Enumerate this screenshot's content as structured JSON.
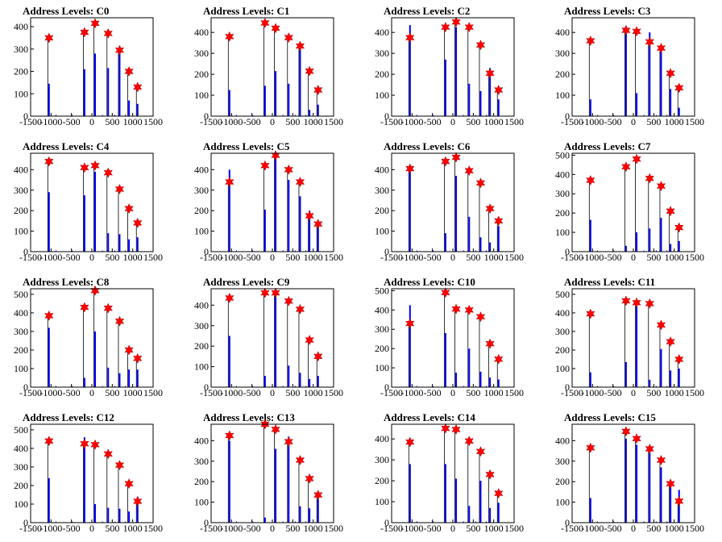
{
  "chart_data": [
    {
      "type": "bar",
      "title": "Address Levels: C0",
      "xlim": [
        -1500,
        1500
      ],
      "ylim": [
        0,
        440
      ],
      "x_ticks": [
        "-1500",
        "-1000",
        "-500",
        "0",
        "500",
        "1000",
        "1500"
      ],
      "y_ticks": [
        "0",
        "100",
        "200",
        "300",
        "400"
      ],
      "peaks": {
        "x": [
          -1050,
          -180,
          80,
          400,
          680,
          910,
          1120
        ],
        "y": [
          350,
          375,
          415,
          370,
          295,
          200,
          130
        ]
      },
      "bars": {
        "x": [
          -1050,
          -180,
          80,
          400,
          680,
          910,
          1120
        ],
        "values": [
          145,
          210,
          280,
          215,
          310,
          70,
          55
        ]
      }
    },
    {
      "type": "bar",
      "title": "Address Levels: C1",
      "xlim": [
        -1500,
        1500
      ],
      "ylim": [
        0,
        470
      ],
      "x_ticks": [
        "-1500",
        "-1000",
        "-500",
        "0",
        "500",
        "1000",
        "1500"
      ],
      "y_ticks": [
        "0",
        "100",
        "200",
        "300",
        "400"
      ],
      "peaks": {
        "x": [
          -1050,
          -180,
          80,
          400,
          680,
          910,
          1120
        ],
        "y": [
          380,
          445,
          420,
          375,
          335,
          215,
          125
        ]
      },
      "bars": {
        "x": [
          -1050,
          -180,
          80,
          400,
          680,
          910,
          1120
        ],
        "values": [
          125,
          145,
          215,
          155,
          345,
          30,
          55
        ]
      }
    },
    {
      "type": "bar",
      "title": "Address Levels: C2",
      "xlim": [
        -1500,
        1500
      ],
      "ylim": [
        0,
        470
      ],
      "x_ticks": [
        "-1500",
        "-1000",
        "-500",
        "0",
        "500",
        "1000",
        "1500"
      ],
      "y_ticks": [
        "0",
        "100",
        "200",
        "300",
        "400"
      ],
      "peaks": {
        "x": [
          -1050,
          -180,
          80,
          400,
          680,
          910,
          1120
        ],
        "y": [
          375,
          425,
          450,
          425,
          340,
          205,
          125
        ]
      },
      "bars": {
        "x": [
          -1050,
          -180,
          80,
          400,
          680,
          910,
          1120
        ],
        "values": [
          435,
          270,
          425,
          155,
          120,
          230,
          80
        ]
      }
    },
    {
      "type": "bar",
      "title": "Address Levels: C3",
      "xlim": [
        -1500,
        1500
      ],
      "ylim": [
        0,
        470
      ],
      "x_ticks": [
        "-1500",
        "-1000",
        "-500",
        "0",
        "500",
        "1000",
        "1500"
      ],
      "y_ticks": [
        "0",
        "100",
        "200",
        "300",
        "400"
      ],
      "peaks": {
        "x": [
          -1050,
          -180,
          80,
          400,
          680,
          910,
          1120
        ],
        "y": [
          360,
          410,
          405,
          355,
          325,
          205,
          135
        ]
      },
      "bars": {
        "x": [
          -1050,
          -180,
          80,
          400,
          680,
          910,
          1120
        ],
        "values": [
          80,
          430,
          110,
          400,
          330,
          130,
          40
        ]
      }
    },
    {
      "type": "bar",
      "title": "Address Levels: C4",
      "xlim": [
        -1500,
        1500
      ],
      "ylim": [
        0,
        480
      ],
      "x_ticks": [
        "-1500",
        "-1000",
        "-500",
        "0",
        "500",
        "1000",
        "1500"
      ],
      "y_ticks": [
        "0",
        "100",
        "200",
        "300",
        "400"
      ],
      "peaks": {
        "x": [
          -1050,
          -180,
          80,
          400,
          680,
          910,
          1120
        ],
        "y": [
          440,
          410,
          420,
          385,
          305,
          210,
          140
        ]
      },
      "bars": {
        "x": [
          -1050,
          -180,
          80,
          400,
          680,
          910,
          1120
        ],
        "values": [
          290,
          275,
          390,
          90,
          85,
          60,
          70
        ]
      }
    },
    {
      "type": "bar",
      "title": "Address Levels: C5",
      "xlim": [
        -1500,
        1500
      ],
      "ylim": [
        0,
        480
      ],
      "x_ticks": [
        "-1500",
        "-1000",
        "-500",
        "0",
        "500",
        "1000",
        "1500"
      ],
      "y_ticks": [
        "0",
        "100",
        "200",
        "300",
        "400"
      ],
      "peaks": {
        "x": [
          -1050,
          -180,
          80,
          400,
          680,
          910,
          1120
        ],
        "y": [
          340,
          420,
          470,
          400,
          340,
          175,
          135
        ]
      },
      "bars": {
        "x": [
          -1050,
          -180,
          80,
          400,
          680,
          910,
          1120
        ],
        "values": [
          400,
          205,
          460,
          350,
          270,
          200,
          120
        ]
      }
    },
    {
      "type": "bar",
      "title": "Address Levels: C6",
      "xlim": [
        -1500,
        1500
      ],
      "ylim": [
        0,
        480
      ],
      "x_ticks": [
        "-1500",
        "-1000",
        "-500",
        "0",
        "500",
        "1000",
        "1500"
      ],
      "y_ticks": [
        "0",
        "100",
        "200",
        "300",
        "400"
      ],
      "peaks": {
        "x": [
          -1050,
          -180,
          80,
          400,
          680,
          910,
          1120
        ],
        "y": [
          405,
          440,
          460,
          395,
          335,
          210,
          150
        ]
      },
      "bars": {
        "x": [
          -1050,
          -180,
          80,
          400,
          680,
          910,
          1120
        ],
        "values": [
          420,
          90,
          370,
          170,
          70,
          45,
          125
        ]
      }
    },
    {
      "type": "bar",
      "title": "Address Levels: C7",
      "xlim": [
        -1500,
        1500
      ],
      "ylim": [
        0,
        510
      ],
      "x_ticks": [
        "-1500",
        "-1000",
        "-500",
        "0",
        "500",
        "1000",
        "1500"
      ],
      "y_ticks": [
        "0",
        "100",
        "200",
        "300",
        "400",
        "500"
      ],
      "peaks": {
        "x": [
          -1050,
          -180,
          80,
          400,
          680,
          910,
          1120
        ],
        "y": [
          370,
          440,
          480,
          380,
          340,
          210,
          125
        ]
      },
      "bars": {
        "x": [
          -1050,
          -180,
          80,
          400,
          680,
          910,
          1120
        ],
        "values": [
          165,
          30,
          100,
          120,
          175,
          40,
          55
        ]
      }
    },
    {
      "type": "bar",
      "title": "Address Levels: C8",
      "xlim": [
        -1500,
        1500
      ],
      "ylim": [
        0,
        530
      ],
      "x_ticks": [
        "-1500",
        "-1000",
        "-500",
        "0",
        "500",
        "1000",
        "1500"
      ],
      "y_ticks": [
        "0",
        "100",
        "200",
        "300",
        "400",
        "500"
      ],
      "peaks": {
        "x": [
          -1050,
          -180,
          80,
          400,
          680,
          910,
          1120
        ],
        "y": [
          385,
          430,
          520,
          425,
          355,
          200,
          155
        ]
      },
      "bars": {
        "x": [
          -1050,
          -180,
          80,
          400,
          680,
          910,
          1120
        ],
        "values": [
          320,
          50,
          300,
          105,
          75,
          95,
          95
        ]
      }
    },
    {
      "type": "bar",
      "title": "Address Levels: C9",
      "xlim": [
        -1500,
        1500
      ],
      "ylim": [
        0,
        480
      ],
      "x_ticks": [
        "-1500",
        "-1000",
        "-500",
        "0",
        "500",
        "1000",
        "1500"
      ],
      "y_ticks": [
        "0",
        "100",
        "200",
        "300",
        "400"
      ],
      "peaks": {
        "x": [
          -1050,
          -180,
          80,
          400,
          680,
          910,
          1120
        ],
        "y": [
          435,
          460,
          460,
          420,
          380,
          230,
          150
        ]
      },
      "bars": {
        "x": [
          -1050,
          -180,
          80,
          400,
          680,
          910,
          1120
        ],
        "values": [
          250,
          55,
          450,
          105,
          70,
          40,
          55
        ]
      }
    },
    {
      "type": "bar",
      "title": "Address Levels: C10",
      "xlim": [
        -1500,
        1500
      ],
      "ylim": [
        0,
        510
      ],
      "x_ticks": [
        "-1500",
        "-1000",
        "-500",
        "0",
        "500",
        "1000",
        "1500"
      ],
      "y_ticks": [
        "0",
        "100",
        "200",
        "300",
        "400",
        "500"
      ],
      "peaks": {
        "x": [
          -1050,
          -180,
          80,
          400,
          680,
          910,
          1120
        ],
        "y": [
          330,
          490,
          405,
          400,
          365,
          225,
          145
        ]
      },
      "bars": {
        "x": [
          -1050,
          -180,
          80,
          400,
          680,
          910,
          1120
        ],
        "values": [
          425,
          280,
          75,
          200,
          80,
          50,
          40
        ]
      }
    },
    {
      "type": "bar",
      "title": "Address Levels: C11",
      "xlim": [
        -1500,
        1500
      ],
      "ylim": [
        0,
        530
      ],
      "x_ticks": [
        "-1500",
        "-1000",
        "-500",
        "0",
        "500",
        "1000",
        "1500"
      ],
      "y_ticks": [
        "0",
        "100",
        "200",
        "300",
        "400",
        "500"
      ],
      "peaks": {
        "x": [
          -1050,
          -180,
          80,
          400,
          680,
          910,
          1120
        ],
        "y": [
          395,
          465,
          455,
          450,
          335,
          245,
          150
        ]
      },
      "bars": {
        "x": [
          -1050,
          -180,
          80,
          400,
          680,
          910,
          1120
        ],
        "values": [
          80,
          135,
          450,
          40,
          205,
          90,
          100
        ]
      }
    },
    {
      "type": "bar",
      "title": "Address Levels: C12",
      "xlim": [
        -1500,
        1500
      ],
      "ylim": [
        0,
        530
      ],
      "x_ticks": [
        "-1500",
        "-1000",
        "-500",
        "0",
        "500",
        "1000",
        "1500"
      ],
      "y_ticks": [
        "0",
        "100",
        "200",
        "300",
        "400",
        "500"
      ],
      "peaks": {
        "x": [
          -1050,
          -180,
          80,
          400,
          680,
          910,
          1120
        ],
        "y": [
          440,
          425,
          420,
          370,
          310,
          210,
          115
        ]
      },
      "bars": {
        "x": [
          -1050,
          -180,
          80,
          400,
          680,
          910,
          1120
        ],
        "values": [
          240,
          460,
          100,
          80,
          75,
          60,
          140
        ]
      }
    },
    {
      "type": "bar",
      "title": "Address Levels: C13",
      "xlim": [
        -1500,
        1500
      ],
      "ylim": [
        0,
        480
      ],
      "x_ticks": [
        "-1500",
        "-1000",
        "-500",
        "0",
        "500",
        "1000",
        "1500"
      ],
      "y_ticks": [
        "0",
        "100",
        "200",
        "300",
        "400"
      ],
      "peaks": {
        "x": [
          -1050,
          -180,
          80,
          400,
          680,
          910,
          1120
        ],
        "y": [
          425,
          480,
          455,
          395,
          305,
          215,
          135
        ]
      },
      "bars": {
        "x": [
          -1050,
          -180,
          80,
          400,
          680,
          910,
          1120
        ],
        "values": [
          400,
          25,
          360,
          420,
          80,
          70,
          115
        ]
      }
    },
    {
      "type": "bar",
      "title": "Address Levels: C14",
      "xlim": [
        -1500,
        1500
      ],
      "ylim": [
        0,
        470
      ],
      "x_ticks": [
        "-1500",
        "-1000",
        "-500",
        "0",
        "500",
        "1000",
        "1500"
      ],
      "y_ticks": [
        "0",
        "100",
        "200",
        "300",
        "400"
      ],
      "peaks": {
        "x": [
          -1050,
          -180,
          80,
          400,
          680,
          910,
          1120
        ],
        "y": [
          385,
          450,
          445,
          390,
          340,
          230,
          140
        ]
      },
      "bars": {
        "x": [
          -1050,
          -180,
          80,
          400,
          680,
          910,
          1120
        ],
        "values": [
          280,
          280,
          210,
          80,
          200,
          70,
          95
        ]
      }
    },
    {
      "type": "bar",
      "title": "Address Levels: C15",
      "xlim": [
        -1500,
        1500
      ],
      "ylim": [
        0,
        480
      ],
      "x_ticks": [
        "-1500",
        "-1000",
        "-500",
        "0",
        "500",
        "1000",
        "1500"
      ],
      "y_ticks": [
        "0",
        "100",
        "200",
        "300",
        "400"
      ],
      "peaks": {
        "x": [
          -1050,
          -180,
          80,
          400,
          680,
          910,
          1120
        ],
        "y": [
          365,
          445,
          410,
          360,
          305,
          190,
          105
        ]
      },
      "bars": {
        "x": [
          -1050,
          -180,
          80,
          400,
          680,
          910,
          1120
        ],
        "values": [
          120,
          410,
          380,
          340,
          270,
          200,
          160
        ]
      }
    }
  ],
  "colors": {
    "bar": "#0000ff",
    "marker": "#ff0000",
    "axis": "#000000"
  }
}
